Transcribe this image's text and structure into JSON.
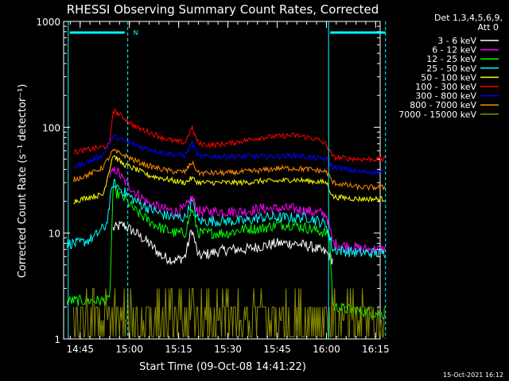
{
  "chart_data": {
    "type": "line",
    "title": "RHESSI Observing Summary Count Rates, Corrected",
    "xlabel": "Start Time (09-Oct-08 14:41:22)",
    "ylabel": "Corrected Count Rate (s⁻¹ detector⁻¹)",
    "yscale": "log",
    "ylim": [
      1,
      1000
    ],
    "xlim_minutes_from_start": [
      -1.4,
      95
    ],
    "xticks": [
      "14:45",
      "15:00",
      "15:15",
      "15:30",
      "15:45",
      "16:00",
      "16:15"
    ],
    "yticks": [
      "1",
      "10",
      "100",
      "1000"
    ],
    "legend_header": [
      "Det 1,3,4,5,6,9,",
      "Att 0"
    ],
    "legend_position": "right",
    "flag_marker": "N",
    "footer_date": "15-Oct-2021 16:12",
    "vlines_time": [
      "14:41:22",
      "16:00:40"
    ],
    "vlines_dashed_time": [
      "14:59:30",
      "16:18:00"
    ],
    "series": [
      {
        "name": "3 - 6 keV",
        "color": "#ffffff",
        "t": [
          "14:55",
          "14:58",
          "15:02",
          "15:06",
          "15:10",
          "15:14",
          "15:17",
          "15:19",
          "15:21",
          "15:25",
          "15:30",
          "15:35",
          "15:40",
          "15:45",
          "15:50",
          "15:55",
          "16:00",
          "16:02"
        ],
        "values": [
          11,
          12,
          10,
          8,
          6,
          5.5,
          6,
          11,
          6,
          6.5,
          7,
          7,
          7.5,
          8,
          8,
          7.5,
          6.5,
          5.5
        ]
      },
      {
        "name": "6 - 12 keV",
        "color": "#ff00ff",
        "t": [
          "14:54",
          "14:56",
          "14:58",
          "15:02",
          "15:06",
          "15:10",
          "15:14",
          "15:17",
          "15:19",
          "15:21",
          "15:25",
          "15:30",
          "15:35",
          "15:40",
          "15:45",
          "15:50",
          "15:55",
          "16:00",
          "16:02",
          "16:12",
          "16:18"
        ],
        "values": [
          35,
          40,
          32,
          24,
          19,
          17,
          16,
          17,
          22,
          16,
          16,
          16,
          16,
          17,
          17,
          17,
          16,
          15,
          8,
          7,
          7
        ]
      },
      {
        "name": "12 - 25 keV",
        "color": "#00ff00",
        "t": [
          "14:41",
          "14:54",
          "14:55",
          "14:58",
          "15:02",
          "15:06",
          "15:10",
          "15:14",
          "15:17",
          "15:19",
          "15:21",
          "15:25",
          "15:30",
          "15:35",
          "15:40",
          "15:45",
          "15:50",
          "15:55",
          "16:00",
          "16:01",
          "16:02",
          "16:18"
        ],
        "values": [
          2.3,
          2.3,
          25,
          22,
          16,
          13,
          11,
          10,
          10,
          17,
          10,
          10,
          10,
          11,
          11,
          12,
          12,
          11,
          10,
          9,
          2,
          1.7
        ]
      },
      {
        "name": "25 - 50 keV",
        "color": "#00ffff",
        "t": [
          "14:41",
          "14:45",
          "14:49",
          "14:53",
          "14:55",
          "14:58",
          "15:02",
          "15:06",
          "15:10",
          "15:14",
          "15:17",
          "15:19",
          "15:21",
          "15:25",
          "15:30",
          "15:35",
          "15:40",
          "15:45",
          "15:50",
          "15:55",
          "16:00",
          "16:02",
          "16:10",
          "16:18"
        ],
        "values": [
          8,
          8,
          9,
          12,
          30,
          25,
          20,
          17,
          15,
          14,
          14,
          20,
          13,
          13,
          13,
          13,
          14,
          14,
          14,
          14,
          12,
          7,
          6.5,
          6.5
        ]
      },
      {
        "name": "50 - 100 keV",
        "color": "#ffff00",
        "t": [
          "14:43",
          "14:48",
          "14:52",
          "14:55",
          "14:58",
          "15:02",
          "15:06",
          "15:10",
          "15:14",
          "15:17",
          "15:19",
          "15:21",
          "15:25",
          "15:30",
          "15:35",
          "15:40",
          "15:45",
          "15:50",
          "15:55",
          "16:00",
          "16:02",
          "16:10",
          "16:18"
        ],
        "values": [
          20,
          22,
          23,
          55,
          45,
          40,
          35,
          33,
          31,
          30,
          33,
          30,
          30,
          30,
          30,
          31,
          31,
          32,
          31,
          30,
          22,
          21,
          21
        ]
      },
      {
        "name": "100 - 300 keV",
        "color": "#ff0000",
        "t": [
          "14:43",
          "14:48",
          "14:52",
          "14:54",
          "14:55",
          "14:58",
          "15:02",
          "15:06",
          "15:10",
          "15:14",
          "15:17",
          "15:19",
          "15:21",
          "15:25",
          "15:30",
          "15:35",
          "15:40",
          "15:45",
          "15:50",
          "15:55",
          "15:58",
          "16:00",
          "16:02",
          "16:10",
          "16:18"
        ],
        "values": [
          58,
          62,
          65,
          68,
          145,
          125,
          100,
          90,
          80,
          73,
          72,
          100,
          70,
          68,
          70,
          75,
          80,
          82,
          84,
          80,
          75,
          68,
          52,
          50,
          50
        ]
      },
      {
        "name": "300 - 800 keV",
        "color": "#0000ff",
        "t": [
          "14:43",
          "14:48",
          "14:52",
          "14:55",
          "14:58",
          "15:02",
          "15:06",
          "15:10",
          "15:14",
          "15:17",
          "15:19",
          "15:21",
          "15:25",
          "15:30",
          "15:35",
          "15:40",
          "15:45",
          "15:50",
          "15:55",
          "16:00",
          "16:02",
          "16:10",
          "16:18"
        ],
        "values": [
          42,
          48,
          55,
          82,
          75,
          68,
          62,
          58,
          55,
          54,
          72,
          53,
          53,
          53,
          53,
          53,
          53,
          54,
          52,
          50,
          42,
          38,
          38
        ]
      },
      {
        "name": "800 - 7000 keV",
        "color": "#ff8c00",
        "t": [
          "14:43",
          "14:48",
          "14:52",
          "14:55",
          "14:58",
          "15:02",
          "15:06",
          "15:10",
          "15:14",
          "15:17",
          "15:19",
          "15:21",
          "15:25",
          "15:30",
          "15:35",
          "15:40",
          "15:45",
          "15:50",
          "15:55",
          "16:00",
          "16:02",
          "16:10",
          "16:18"
        ],
        "values": [
          32,
          36,
          42,
          60,
          55,
          48,
          43,
          40,
          38,
          38,
          47,
          37,
          37,
          37,
          38,
          39,
          41,
          41,
          40,
          38,
          30,
          27,
          27
        ]
      },
      {
        "name": "7000 - 15000 keV",
        "color": "#8b8b00",
        "t": [
          "14:43",
          "14:55",
          "15:00",
          "15:04",
          "15:10",
          "15:20",
          "15:28",
          "15:34",
          "15:40",
          "15:46",
          "15:52",
          "15:58",
          "16:02",
          "16:10",
          "16:18"
        ],
        "values": [
          1.7,
          2.4,
          2.1,
          1.8,
          1.5,
          1.6,
          1.8,
          1.2,
          1.7,
          1.5,
          1.7,
          1.6,
          1.4,
          1.2,
          1.2
        ]
      }
    ]
  }
}
